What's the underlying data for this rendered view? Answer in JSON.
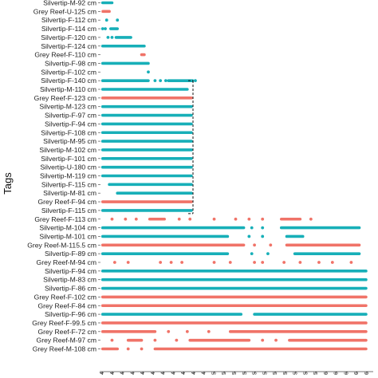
{
  "chart_data": {
    "type": "scatter",
    "title": "",
    "ylabel": "Tags",
    "xlabel": "",
    "colors": {
      "Silvertip": "#17AFB8",
      "Grey Reef": "#F07368"
    },
    "x_tick_labels": [
      "4",
      "4",
      "4",
      "4",
      "4",
      "4",
      "4",
      "4",
      "4",
      "4",
      "4",
      "5",
      "5",
      "5",
      "5",
      "5",
      "5",
      "5",
      "5",
      "5",
      "5",
      "5",
      "6",
      "6",
      "6",
      "6",
      "6"
    ],
    "xlim": [
      0,
      1
    ],
    "series": [
      {
        "tag": "Silvertip-M-92 cm",
        "species": "Silvertip",
        "segments": [
          [
            0.005,
            0.04
          ]
        ],
        "scattered": []
      },
      {
        "tag": "Grey Reef-U-125 cm",
        "species": "Grey Reef",
        "segments": [
          [
            0.006,
            0.03
          ]
        ],
        "scattered": []
      },
      {
        "tag": "Silvertip-F-112 cm",
        "species": "Silvertip",
        "segments": [],
        "scattered": [
          0.02,
          0.06
        ]
      },
      {
        "tag": "Silvertip-F-114 cm",
        "species": "Silvertip",
        "segments": [
          [
            0.035,
            0.06
          ]
        ],
        "scattered": [
          0.005,
          0.015
        ]
      },
      {
        "tag": "Silvertip-F-120 cm",
        "species": "Silvertip",
        "segments": [
          [
            0.055,
            0.11
          ]
        ],
        "scattered": [
          0.025,
          0.04
        ]
      },
      {
        "tag": "Silvertip-F-124 cm",
        "species": "Silvertip",
        "segments": [
          [
            0.005,
            0.16
          ]
        ],
        "scattered": []
      },
      {
        "tag": "Grey Reef-F-110 cm",
        "species": "Grey Reef",
        "segments": [
          [
            0.15,
            0.16
          ]
        ],
        "scattered": []
      },
      {
        "tag": "Silvertip-F-98 cm",
        "species": "Silvertip",
        "segments": [
          [
            0.005,
            0.175
          ]
        ],
        "scattered": []
      },
      {
        "tag": "Silvertip-F-102 cm",
        "species": "Silvertip",
        "segments": [],
        "scattered": [
          0.175
        ]
      },
      {
        "tag": "Silvertip-F-140 cm",
        "species": "Silvertip",
        "segments": [
          [
            0.005,
            0.175
          ],
          [
            0.25,
            0.34
          ]
        ],
        "scattered": [
          0.2,
          0.22,
          0.24,
          0.35
        ]
      },
      {
        "tag": "Silvertip-M-110 cm",
        "species": "Silvertip",
        "segments": [
          [
            0.005,
            0.32
          ]
        ],
        "scattered": []
      },
      {
        "tag": "Grey Reef-F-123 cm",
        "species": "Grey Reef",
        "segments": [
          [
            0.005,
            0.335
          ]
        ],
        "scattered": []
      },
      {
        "tag": "Silvertip-M-123 cm",
        "species": "Silvertip",
        "segments": [
          [
            0.005,
            0.335
          ]
        ],
        "scattered": []
      },
      {
        "tag": "Silvertip-F-97 cm",
        "species": "Silvertip",
        "segments": [
          [
            0.005,
            0.335
          ]
        ],
        "scattered": []
      },
      {
        "tag": "Silvertip-F-94 cm",
        "species": "Silvertip",
        "segments": [
          [
            0.005,
            0.335
          ]
        ],
        "scattered": []
      },
      {
        "tag": "Silvertip-F-108 cm",
        "species": "Silvertip",
        "segments": [
          [
            0.005,
            0.335
          ]
        ],
        "scattered": []
      },
      {
        "tag": "Silvertip-M-95 cm",
        "species": "Silvertip",
        "segments": [
          [
            0.005,
            0.335
          ]
        ],
        "scattered": []
      },
      {
        "tag": "Silvertip-M-102 cm",
        "species": "Silvertip",
        "segments": [
          [
            0.005,
            0.335
          ]
        ],
        "scattered": []
      },
      {
        "tag": "Silvertip-F-101 cm",
        "species": "Silvertip",
        "segments": [
          [
            0.005,
            0.335
          ]
        ],
        "scattered": []
      },
      {
        "tag": "Silvertip-U-180 cm",
        "species": "Silvertip",
        "segments": [
          [
            0.005,
            0.335
          ]
        ],
        "scattered": []
      },
      {
        "tag": "Silvertip-M-119 cm",
        "species": "Silvertip",
        "segments": [
          [
            0.005,
            0.335
          ]
        ],
        "scattered": []
      },
      {
        "tag": "Silvertip-F-115 cm",
        "species": "Silvertip",
        "segments": [
          [
            0.03,
            0.335
          ]
        ],
        "scattered": []
      },
      {
        "tag": "Silvertip-M-81 cm",
        "species": "Silvertip",
        "segments": [
          [
            0.06,
            0.335
          ]
        ],
        "scattered": []
      },
      {
        "tag": "Grey Reef-F-94 cm",
        "species": "Grey Reef",
        "segments": [
          [
            0.005,
            0.335
          ]
        ],
        "scattered": []
      },
      {
        "tag": "Silvertip-F-115 cm",
        "species": "Silvertip",
        "segments": [
          [
            0.005,
            0.335
          ]
        ],
        "scattered": []
      },
      {
        "tag": "Grey Reef-F-113 cm",
        "species": "Grey Reef",
        "segments": [
          [
            0.18,
            0.235
          ],
          [
            0.67,
            0.74
          ]
        ],
        "scattered": [
          0.04,
          0.09,
          0.13,
          0.29,
          0.33,
          0.42,
          0.5,
          0.55,
          0.6,
          0.78
        ]
      },
      {
        "tag": "Silvertip-M-104 cm",
        "species": "Silvertip",
        "segments": [
          [
            0.005,
            0.53
          ],
          [
            0.67,
            0.96
          ]
        ],
        "scattered": [
          0.56,
          0.6
        ]
      },
      {
        "tag": "Silvertip-M-101 cm",
        "species": "Silvertip",
        "segments": [
          [
            0.005,
            0.47
          ],
          [
            0.69,
            0.75
          ]
        ],
        "scattered": [
          0.55,
          0.6
        ]
      },
      {
        "tag": "Grey Reef-M-115.5 cm",
        "species": "Grey Reef",
        "segments": [
          [
            0.005,
            0.53
          ],
          [
            0.69,
            0.96
          ]
        ],
        "scattered": [
          0.57,
          0.63
        ]
      },
      {
        "tag": "Silvertip-F-89 cm",
        "species": "Silvertip",
        "segments": [
          [
            0.005,
            0.47
          ],
          [
            0.72,
            0.96
          ]
        ],
        "scattered": [
          0.56,
          0.62
        ]
      },
      {
        "tag": "Grey Reef-M-94 cm",
        "species": "Grey Reef",
        "segments": [],
        "scattered": [
          0.05,
          0.1,
          0.22,
          0.26,
          0.3,
          0.42,
          0.48,
          0.57,
          0.6,
          0.68,
          0.74,
          0.81,
          0.86,
          0.93
        ]
      },
      {
        "tag": "Silvertip-F-94 cm",
        "species": "Silvertip",
        "segments": [
          [
            0.005,
            0.985
          ]
        ],
        "scattered": []
      },
      {
        "tag": "Silvertip-M-83 cm",
        "species": "Silvertip",
        "segments": [
          [
            0.005,
            0.985
          ]
        ],
        "scattered": []
      },
      {
        "tag": "Silvertip-F-86 cm",
        "species": "Silvertip",
        "segments": [
          [
            0.005,
            0.985
          ]
        ],
        "scattered": []
      },
      {
        "tag": "Grey Reef-F-102 cm",
        "species": "Grey Reef",
        "segments": [
          [
            0.005,
            0.985
          ]
        ],
        "scattered": []
      },
      {
        "tag": "Grey Reef-F-84 cm",
        "species": "Grey Reef",
        "segments": [
          [
            0.005,
            0.985
          ]
        ],
        "scattered": []
      },
      {
        "tag": "Silvertip-F-96 cm",
        "species": "Silvertip",
        "segments": [
          [
            0.005,
            0.52
          ],
          [
            0.57,
            0.985
          ]
        ],
        "scattered": []
      },
      {
        "tag": "Grey Reef-F-99.5 cm",
        "species": "Grey Reef",
        "segments": [
          [
            0.005,
            0.985
          ]
        ],
        "scattered": []
      },
      {
        "tag": "Grey Reef-F-72 cm",
        "species": "Grey Reef",
        "segments": [
          [
            0.005,
            0.2
          ],
          [
            0.48,
            0.985
          ]
        ],
        "scattered": [
          0.25,
          0.32,
          0.4
        ]
      },
      {
        "tag": "Grey Reef-M-97 cm",
        "species": "Grey Reef",
        "segments": [
          [
            0.1,
            0.15
          ],
          [
            0.33,
            0.55
          ],
          [
            0.7,
            0.985
          ]
        ],
        "scattered": [
          0.04,
          0.2,
          0.28,
          0.6,
          0.65
        ]
      },
      {
        "tag": "Grey Reef-M-108 cm",
        "species": "Grey Reef",
        "segments": [
          [
            0.005,
            0.06
          ],
          [
            0.2,
            0.985
          ]
        ],
        "scattered": [
          0.1,
          0.15
        ]
      }
    ],
    "annotation": {
      "type": "dashed-bracket",
      "from_tag_index": 9,
      "to_tag_index": 24
    }
  }
}
